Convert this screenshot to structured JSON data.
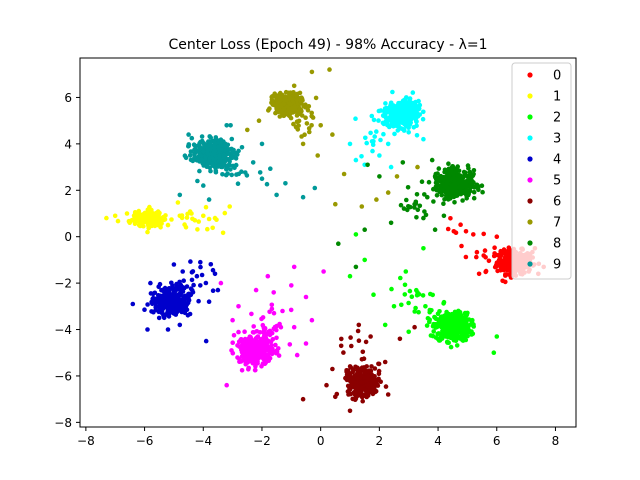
{
  "chart_data": {
    "type": "scatter",
    "title": "Center Loss (Epoch 49) - 98% Accuracy - λ=1",
    "xlabel": "",
    "ylabel": "",
    "xlim": [
      -8.2,
      8.7
    ],
    "ylim": [
      -8.2,
      7.7
    ],
    "xticks": [
      -8,
      -6,
      -4,
      -2,
      0,
      2,
      4,
      6,
      8
    ],
    "yticks": [
      -8,
      -6,
      -4,
      -2,
      0,
      2,
      4,
      6
    ],
    "grid": false,
    "legend": "top-right",
    "series": [
      {
        "name": "0",
        "color": "#ff0000",
        "center": [
          6.6,
          -1.1
        ],
        "spread": [
          0.3,
          0.25
        ],
        "count": 300,
        "tail_toward": [
          4.3,
          0.1
        ],
        "tail_count": 22,
        "points": [
          [
            4.8,
            -0.4
          ],
          [
            5.2,
            0.1
          ],
          [
            5.6,
            -0.6
          ],
          [
            6.0,
            0.0
          ],
          [
            5.4,
            -1.6
          ],
          [
            7.3,
            -0.5
          ],
          [
            7.6,
            -1.3
          ],
          [
            6.2,
            -1.9
          ]
        ]
      },
      {
        "name": "1",
        "color": "#ffff00",
        "center": [
          -5.9,
          0.8
        ],
        "spread": [
          0.25,
          0.15
        ],
        "count": 260,
        "tail_toward": [
          -3.5,
          0.8
        ],
        "tail_count": 22,
        "points": [
          [
            -7.3,
            0.8
          ],
          [
            -7.0,
            0.9
          ],
          [
            -6.6,
            1.0
          ],
          [
            -5.2,
            0.5
          ],
          [
            -4.8,
            0.9
          ],
          [
            -4.4,
            1.0
          ],
          [
            -4.0,
            0.9
          ],
          [
            -3.6,
            0.8
          ],
          [
            -5.9,
            0.2
          ],
          [
            -3.1,
            1.3
          ]
        ]
      },
      {
        "name": "2",
        "color": "#00ff00",
        "center": [
          4.5,
          -3.9
        ],
        "spread": [
          0.3,
          0.3
        ],
        "count": 360,
        "tail_toward": [
          2.6,
          -2.0
        ],
        "tail_count": 35,
        "points": [
          [
            1.2,
            0.1
          ],
          [
            1.5,
            -1.0
          ],
          [
            1.8,
            -2.5
          ],
          [
            2.5,
            -3.0
          ],
          [
            2.9,
            -1.5
          ],
          [
            3.3,
            -2.4
          ],
          [
            3.5,
            -0.5
          ],
          [
            1.0,
            -1.7
          ],
          [
            2.2,
            -3.8
          ],
          [
            3.0,
            -4.1
          ],
          [
            5.9,
            -5.0
          ],
          [
            6.0,
            -4.3
          ]
        ]
      },
      {
        "name": "3",
        "color": "#00ffff",
        "center": [
          2.8,
          5.3
        ],
        "spread": [
          0.28,
          0.28
        ],
        "count": 330,
        "tail_toward": [
          1.5,
          3.7
        ],
        "tail_count": 28,
        "points": [
          [
            1.0,
            4.0
          ],
          [
            1.5,
            3.1
          ],
          [
            2.0,
            3.5
          ],
          [
            2.3,
            4.0
          ],
          [
            3.5,
            4.2
          ],
          [
            3.0,
            4.5
          ],
          [
            1.2,
            3.3
          ],
          [
            2.4,
            3.0
          ]
        ]
      },
      {
        "name": "4",
        "color": "#0000cc",
        "center": [
          -5.1,
          -2.8
        ],
        "spread": [
          0.3,
          0.3
        ],
        "count": 330,
        "tail_toward": [
          -4.2,
          -1.0
        ],
        "tail_count": 28,
        "points": [
          [
            -5.9,
            -4.0
          ],
          [
            -6.4,
            -2.9
          ],
          [
            -4.1,
            -1.1
          ],
          [
            -4.1,
            -2.1
          ],
          [
            -3.8,
            -2.8
          ],
          [
            -3.5,
            -2.3
          ],
          [
            -3.6,
            -1.6
          ],
          [
            -4.7,
            -1.5
          ],
          [
            -5.8,
            -2.0
          ],
          [
            -5.0,
            -1.2
          ],
          [
            -5.5,
            -3.5
          ],
          [
            -4.8,
            -3.8
          ],
          [
            -5.2,
            -4.0
          ],
          [
            -3.9,
            -4.5
          ]
        ]
      },
      {
        "name": "5",
        "color": "#ff00ff",
        "center": [
          -2.2,
          -4.9
        ],
        "spread": [
          0.3,
          0.32
        ],
        "count": 380,
        "tail_toward": [
          -1.5,
          -3.0
        ],
        "tail_count": 32,
        "points": [
          [
            -1.6,
            -2.4
          ],
          [
            -1.0,
            -2.1
          ],
          [
            -0.5,
            -2.6
          ],
          [
            -0.3,
            -3.6
          ],
          [
            -0.9,
            -3.9
          ],
          [
            -1.3,
            -3.2
          ],
          [
            -2.8,
            -3.0
          ],
          [
            -3.0,
            -3.6
          ],
          [
            -3.2,
            -6.4
          ],
          [
            -0.8,
            -5.1
          ],
          [
            -0.5,
            -4.6
          ],
          [
            -2.2,
            -2.3
          ],
          [
            -3.4,
            -2.0
          ],
          [
            -1.8,
            -1.7
          ],
          [
            0.1,
            -1.5
          ],
          [
            -0.9,
            -1.3
          ]
        ]
      },
      {
        "name": "6",
        "color": "#8b0000",
        "center": [
          1.4,
          -6.3
        ],
        "spread": [
          0.25,
          0.28
        ],
        "count": 330,
        "tail_toward": [
          1.4,
          -4.5
        ],
        "tail_count": 28,
        "points": [
          [
            0.4,
            -5.7
          ],
          [
            0.2,
            -6.4
          ],
          [
            0.5,
            -6.9
          ],
          [
            -0.6,
            -7.0
          ],
          [
            0.7,
            -4.7
          ],
          [
            1.3,
            -3.8
          ],
          [
            1.7,
            -4.3
          ],
          [
            2.2,
            -5.4
          ],
          [
            2.7,
            -4.4
          ],
          [
            3.2,
            -3.9
          ],
          [
            2.3,
            -6.8
          ],
          [
            1.0,
            -7.5
          ]
        ]
      },
      {
        "name": "7",
        "color": "#999900",
        "center": [
          -1.1,
          5.7
        ],
        "spread": [
          0.25,
          0.22
        ],
        "count": 300,
        "tail_toward": [
          -0.5,
          4.5
        ],
        "tail_count": 28,
        "points": [
          [
            -2.1,
            5.0
          ],
          [
            -2.5,
            4.6
          ],
          [
            -0.3,
            7.1
          ],
          [
            0.3,
            7.2
          ],
          [
            -0.9,
            6.5
          ],
          [
            0.4,
            4.4
          ],
          [
            -0.1,
            3.5
          ],
          [
            0.8,
            2.7
          ],
          [
            0.5,
            1.4
          ],
          [
            1.4,
            1.3
          ],
          [
            1.9,
            1.6
          ],
          [
            2.3,
            1.9
          ],
          [
            2.6,
            2.6
          ],
          [
            3.3,
            3.0
          ],
          [
            -0.6,
            4.0
          ],
          [
            0.0,
            4.8
          ]
        ]
      },
      {
        "name": "8",
        "color": "#008800",
        "center": [
          4.6,
          2.3
        ],
        "spread": [
          0.32,
          0.28
        ],
        "count": 360,
        "tail_toward": [
          2.6,
          1.0
        ],
        "tail_count": 35,
        "points": [
          [
            1.6,
            3.1
          ],
          [
            2.0,
            2.6
          ],
          [
            2.4,
            0.6
          ],
          [
            3.2,
            1.4
          ],
          [
            3.5,
            0.8
          ],
          [
            3.9,
            0.3
          ],
          [
            4.2,
            0.9
          ],
          [
            1.5,
            0.3
          ],
          [
            1.2,
            -1.3
          ],
          [
            0.6,
            -0.3
          ],
          [
            2.8,
            3.2
          ],
          [
            3.8,
            3.3
          ]
        ]
      },
      {
        "name": "9",
        "color": "#009999",
        "center": [
          -3.7,
          3.6
        ],
        "spread": [
          0.33,
          0.28
        ],
        "count": 360,
        "tail_toward": [
          -2.3,
          2.5
        ],
        "tail_count": 35,
        "points": [
          [
            -2.0,
            4.0
          ],
          [
            -2.3,
            3.2
          ],
          [
            -2.7,
            2.8
          ],
          [
            -2.0,
            2.5
          ],
          [
            -1.5,
            1.8
          ],
          [
            -0.6,
            1.7
          ],
          [
            -0.2,
            2.1
          ],
          [
            -4.2,
            2.4
          ],
          [
            -4.0,
            2.2
          ],
          [
            -3.8,
            1.6
          ],
          [
            -4.8,
            1.8
          ],
          [
            -3.2,
            4.8
          ],
          [
            -4.5,
            4.4
          ],
          [
            -1.2,
            2.3
          ]
        ]
      }
    ]
  }
}
